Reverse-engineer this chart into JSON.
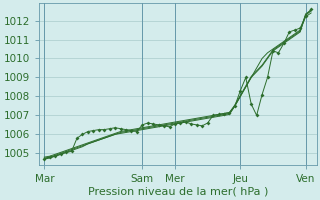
{
  "xlabel": "Pression niveau de la mer( hPa )",
  "bg_color": "#d4ecec",
  "grid_color": "#aacccc",
  "line_color": "#2d6e2d",
  "vline_color": "#6699aa",
  "ylim": [
    1004.4,
    1012.9
  ],
  "yticks": [
    1005,
    1006,
    1007,
    1008,
    1009,
    1010,
    1011,
    1012
  ],
  "day_labels": [
    "Mar",
    "Sam",
    "Mer",
    "Jeu",
    "Ven"
  ],
  "day_positions": [
    0,
    18,
    24,
    36,
    48
  ],
  "xlim": [
    -1,
    50
  ],
  "n_points": 50,
  "series": [
    [
      1004.7,
      1004.75,
      1004.85,
      1004.95,
      1005.05,
      1005.15,
      1005.25,
      1005.35,
      1005.5,
      1005.6,
      1005.7,
      1005.8,
      1005.9,
      1006.0,
      1006.05,
      1006.1,
      1006.15,
      1006.2,
      1006.25,
      1006.3,
      1006.35,
      1006.4,
      1006.45,
      1006.5,
      1006.55,
      1006.6,
      1006.65,
      1006.7,
      1006.75,
      1006.8,
      1006.85,
      1006.9,
      1006.95,
      1007.0,
      1007.05,
      1007.5,
      1008.0,
      1008.5,
      1009.0,
      1009.5,
      1010.0,
      1010.3,
      1010.5,
      1010.7,
      1010.9,
      1011.1,
      1011.3,
      1011.5,
      1012.2,
      1012.4
    ],
    [
      1004.75,
      1004.8,
      1004.9,
      1005.0,
      1005.1,
      1005.2,
      1005.3,
      1005.4,
      1005.5,
      1005.6,
      1005.7,
      1005.8,
      1005.9,
      1006.0,
      1006.1,
      1006.15,
      1006.2,
      1006.25,
      1006.3,
      1006.35,
      1006.4,
      1006.45,
      1006.5,
      1006.55,
      1006.6,
      1006.65,
      1006.7,
      1006.75,
      1006.8,
      1006.85,
      1006.9,
      1006.95,
      1007.0,
      1007.05,
      1007.1,
      1007.5,
      1008.0,
      1008.5,
      1009.0,
      1009.3,
      1009.6,
      1010.0,
      1010.4,
      1010.6,
      1010.8,
      1011.0,
      1011.2,
      1011.4,
      1012.3,
      1012.5
    ],
    [
      1004.8,
      1004.85,
      1004.95,
      1005.05,
      1005.15,
      1005.25,
      1005.35,
      1005.45,
      1005.55,
      1005.65,
      1005.75,
      1005.85,
      1005.95,
      1006.05,
      1006.15,
      1006.2,
      1006.25,
      1006.3,
      1006.35,
      1006.4,
      1006.45,
      1006.5,
      1006.55,
      1006.6,
      1006.65,
      1006.7,
      1006.75,
      1006.8,
      1006.85,
      1006.9,
      1006.95,
      1007.0,
      1007.05,
      1007.1,
      1007.15,
      1007.55,
      1008.05,
      1008.55,
      1009.05,
      1009.35,
      1009.65,
      1010.05,
      1010.45,
      1010.65,
      1010.85,
      1011.05,
      1011.25,
      1011.45,
      1012.35,
      1012.55
    ],
    [
      1004.7,
      1004.8,
      1004.85,
      1004.95,
      1005.05,
      1005.1,
      1005.8,
      1006.0,
      1006.15,
      1006.2,
      1006.25,
      1006.25,
      1006.3,
      1006.35,
      1006.3,
      1006.25,
      1006.2,
      1006.15,
      1006.5,
      1006.6,
      1006.55,
      1006.5,
      1006.45,
      1006.4,
      1006.55,
      1006.6,
      1006.65,
      1006.55,
      1006.5,
      1006.45,
      1006.6,
      1007.0,
      1007.05,
      1007.1,
      1007.15,
      1007.5,
      1008.3,
      1009.0,
      1007.6,
      1007.0,
      1008.1,
      1009.0,
      1010.4,
      1010.3,
      1010.8,
      1011.4,
      1011.5,
      1011.6,
      1012.25,
      1012.6
    ]
  ],
  "text_color": "#2d6e2d",
  "font_size": 7.5,
  "xlabel_fontsize": 8.0
}
